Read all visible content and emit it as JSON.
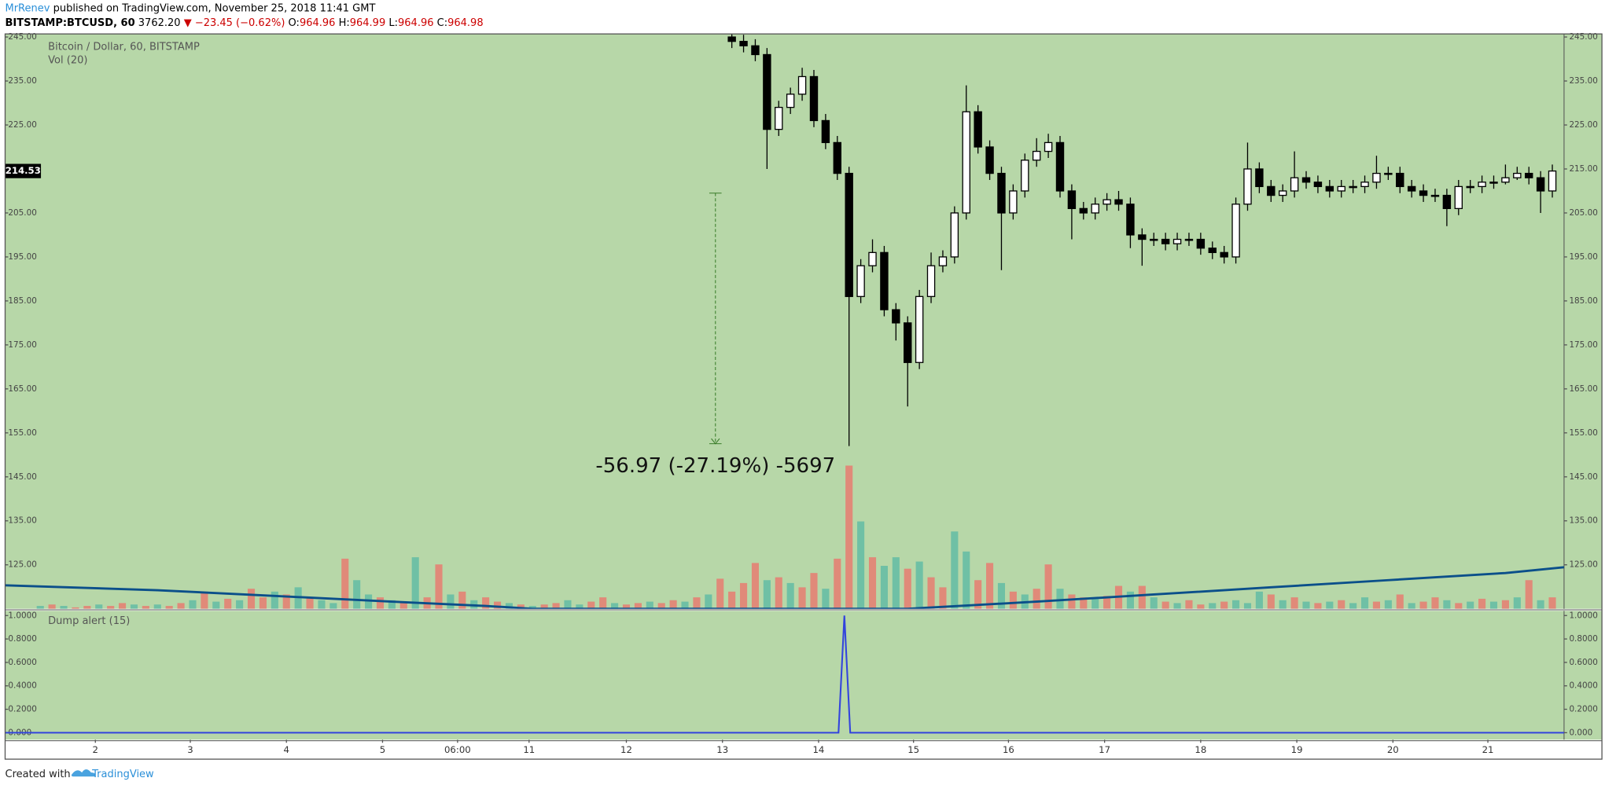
{
  "header": {
    "author": "MrRenev",
    "published": "published on TradingView.com, November 25, 2018 11:41 GMT",
    "symbol": "BITSTAMP:BTCUSD, 60",
    "last": "3762.20",
    "change": "▼ −23.45 (−0.62%)",
    "o_label": "O:",
    "o": "964.96",
    "h_label": "H:",
    "h": "964.99",
    "l_label": "L:",
    "l": "964.96",
    "c_label": "C:",
    "c": "964.98"
  },
  "footer": {
    "created": "Created with",
    "brand": "TradingView"
  },
  "chart_data": [
    {
      "type": "candlestick",
      "title": "Bitcoin / Dollar, 60, BITSTAMP",
      "background": "#b7d7a8",
      "up_color": "#ffffff",
      "down_color": "#000000",
      "xlim": [
        -3,
        130
      ],
      "xticks": [
        {
          "value": 4.7,
          "label": "2"
        },
        {
          "value": 12.8,
          "label": "3"
        },
        {
          "value": 21,
          "label": "4"
        },
        {
          "value": 29.2,
          "label": "5"
        },
        {
          "value": 35.6,
          "label": "06:00"
        },
        {
          "value": 41.7,
          "label": "11"
        },
        {
          "value": 50,
          "label": "12"
        },
        {
          "value": 58.2,
          "label": "13"
        },
        {
          "value": 66.4,
          "label": "14"
        },
        {
          "value": 74.5,
          "label": "15"
        },
        {
          "value": 82.6,
          "label": "16"
        },
        {
          "value": 90.8,
          "label": "17"
        },
        {
          "value": 99,
          "label": "18"
        },
        {
          "value": 107.2,
          "label": "19"
        },
        {
          "value": 115.4,
          "label": "20"
        },
        {
          "value": 123.5,
          "label": "21"
        }
      ],
      "ylim": [
        115,
        245.7
      ],
      "yticks": [
        {
          "value": 125,
          "label": "125.00"
        },
        {
          "value": 135,
          "label": "135.00"
        },
        {
          "value": 145,
          "label": "145.00"
        },
        {
          "value": 155,
          "label": "155.00"
        },
        {
          "value": 165,
          "label": "165.00"
        },
        {
          "value": 175,
          "label": "175.00"
        },
        {
          "value": 185,
          "label": "185.00"
        },
        {
          "value": 195,
          "label": "195.00"
        },
        {
          "value": 205,
          "label": "205.00"
        },
        {
          "value": 215,
          "label": "215.00"
        },
        {
          "value": 225,
          "label": "225.00"
        },
        {
          "value": 235,
          "label": "235.00"
        },
        {
          "value": 245,
          "label": "245.00"
        }
      ],
      "last_price": {
        "value": 214.53,
        "label": "214.53"
      },
      "x": [
        59,
        60,
        61,
        62,
        63,
        64,
        65,
        66,
        67,
        68,
        69,
        70,
        71,
        72,
        73,
        74,
        75,
        76,
        77,
        78,
        79,
        80,
        81,
        82,
        83,
        84,
        85,
        86,
        87,
        88,
        89,
        90,
        91,
        92,
        93,
        94,
        95,
        96,
        97,
        98,
        99,
        100,
        101,
        102,
        103,
        104,
        105,
        106,
        107,
        108,
        109,
        110,
        111,
        112,
        113,
        114,
        115,
        116,
        117,
        118,
        119,
        120,
        121,
        122,
        123,
        124,
        125,
        126,
        127,
        128,
        129
      ],
      "open": [
        245,
        244,
        243,
        241,
        224,
        229,
        232,
        236,
        226,
        221,
        214,
        186,
        193,
        196,
        183,
        180,
        171,
        186,
        193,
        195,
        205,
        228,
        220,
        214,
        205,
        210,
        217,
        219,
        221,
        210,
        206,
        205,
        207,
        208,
        207,
        200,
        199,
        199,
        198,
        199,
        199,
        197,
        196,
        195,
        207,
        215,
        211,
        209,
        210,
        213,
        212,
        211,
        210,
        211,
        211,
        212,
        214,
        214,
        211,
        210,
        209,
        209,
        206,
        211,
        211,
        212,
        212,
        213,
        214,
        213,
        210
      ],
      "high": [
        246.5,
        245.5,
        244.5,
        242.5,
        230.5,
        233.5,
        238,
        237.5,
        227.5,
        222.5,
        215.5,
        194.5,
        199,
        197.5,
        184.5,
        181.5,
        187.5,
        196,
        196.5,
        206.5,
        234,
        229.5,
        221.5,
        215.5,
        211.5,
        218.5,
        222,
        223,
        222.5,
        211.5,
        207.5,
        208.5,
        209.5,
        210,
        208.5,
        201.5,
        200.5,
        200.5,
        200.5,
        200.5,
        200.5,
        198.5,
        197.5,
        208.5,
        221,
        216.5,
        212.5,
        211.5,
        219,
        214.5,
        213.5,
        212.5,
        212.5,
        212.5,
        213.5,
        218,
        215.5,
        215.5,
        212.5,
        211.5,
        210.5,
        210.5,
        212.5,
        212.5,
        213.5,
        213.5,
        216,
        215.5,
        215.5,
        214.5,
        216
      ],
      "low": [
        242.5,
        241.5,
        239.5,
        215,
        222.5,
        227.5,
        230.5,
        224.5,
        219.5,
        212.5,
        152,
        184.5,
        191.5,
        181.5,
        176,
        161,
        169.5,
        184.5,
        191.5,
        193.5,
        203.5,
        218.5,
        212.5,
        192,
        203.5,
        208.5,
        215.5,
        217.5,
        208.5,
        199,
        203.5,
        203.5,
        205.5,
        205.5,
        197,
        193,
        197.5,
        196.5,
        196.5,
        197.5,
        195.5,
        194.5,
        193.5,
        193.5,
        205.5,
        209.5,
        207.5,
        207.5,
        208.5,
        210.5,
        209.5,
        208.5,
        208.5,
        209.5,
        209.5,
        210.5,
        212.5,
        209.5,
        208.5,
        207.5,
        207.5,
        202,
        204.5,
        209.5,
        209.5,
        210.5,
        211.5,
        212.5,
        211.5,
        205,
        208.5
      ],
      "close": [
        244,
        243,
        241,
        224,
        229,
        232,
        236,
        226,
        221,
        214,
        186,
        193,
        196,
        183,
        180,
        171,
        186,
        193,
        195,
        205,
        228,
        220,
        214,
        205,
        210,
        217,
        219,
        221,
        210,
        206,
        205,
        207,
        208,
        207,
        200,
        199,
        199,
        198,
        199,
        199,
        197,
        196,
        195,
        207,
        215,
        211,
        209,
        210,
        213,
        212,
        211,
        210,
        211,
        211,
        212,
        214,
        214,
        211,
        210,
        209,
        209,
        206,
        211,
        211,
        212,
        212,
        213,
        214,
        213,
        210,
        214.53
      ],
      "measure": {
        "x": 57.6,
        "from": 209.5,
        "to": 152.53,
        "color": "#3a7d2a",
        "label": "-56.97 (-27.19%) -5697"
      },
      "volume": {
        "title": "Vol (20)",
        "up_color": "#6fc0a5",
        "down_color": "#e08a79",
        "values": [
          2,
          3,
          2,
          1,
          2,
          3,
          2,
          4,
          3,
          2,
          3,
          2,
          4,
          6,
          12,
          5,
          7,
          6,
          14,
          8,
          12,
          10,
          15,
          8,
          6,
          4,
          35,
          20,
          10,
          8,
          6,
          5,
          36,
          8,
          31,
          10,
          12,
          6,
          8,
          5,
          4,
          3,
          2,
          3,
          4,
          6,
          3,
          5,
          8,
          4,
          3,
          4,
          5,
          4,
          6,
          5,
          8,
          10,
          21,
          12,
          18,
          32,
          20,
          22,
          18,
          15,
          25,
          14,
          35,
          100,
          61,
          36,
          30,
          36,
          28,
          33,
          22,
          15,
          54,
          40,
          20,
          32,
          18,
          12,
          10,
          14,
          31,
          14,
          10,
          8,
          7,
          9,
          16,
          12,
          16,
          8,
          5,
          4,
          6,
          3,
          4,
          5,
          6,
          4,
          12,
          10,
          6,
          8,
          5,
          4,
          5,
          6,
          4,
          8,
          5,
          6,
          10,
          4,
          5,
          8,
          6,
          4,
          5,
          7,
          5,
          6,
          8,
          20,
          6,
          8
        ],
        "up": [
          1,
          0,
          1,
          0,
          0,
          1,
          0,
          0,
          1,
          0,
          1,
          0,
          0,
          1,
          0,
          1,
          0,
          1,
          0,
          0,
          1,
          0,
          1,
          0,
          1,
          1,
          0,
          1,
          1,
          0,
          1,
          0,
          1,
          0,
          0,
          1,
          0,
          1,
          0,
          0,
          1,
          0,
          1,
          0,
          0,
          1,
          1,
          0,
          0,
          1,
          0,
          0,
          1,
          0,
          0,
          1,
          0,
          1,
          0,
          0,
          0,
          0,
          1,
          0,
          1,
          0,
          0,
          1,
          0,
          0,
          1,
          0,
          1,
          1,
          0,
          1,
          0,
          0,
          1,
          1,
          0,
          0,
          1,
          0,
          1,
          0,
          0,
          1,
          0,
          0,
          1,
          0,
          0,
          1,
          0,
          1,
          0,
          1,
          0,
          0,
          1,
          0,
          1,
          1,
          1,
          0,
          1,
          0,
          1,
          0,
          1,
          0,
          1,
          1,
          0,
          1,
          0,
          1,
          0,
          0,
          1,
          0,
          1,
          0,
          1,
          0,
          1,
          0,
          1,
          0
        ]
      },
      "volume_ma": {
        "color": "#0b4f8a",
        "x": [
          -3,
          10,
          20,
          30,
          38,
          42,
          74,
          85,
          95,
          105,
          115,
          125,
          130
        ],
        "values": [
          16.4,
          13,
          9,
          5,
          2,
          0,
          0,
          5,
          10,
          15,
          20,
          25,
          29
        ]
      }
    },
    {
      "type": "line",
      "title": "Dump alert (15)",
      "color": "#3344dd",
      "background": "#b7d7a8",
      "xlim": [
        -3,
        130
      ],
      "ylim": [
        -0.06,
        1.04
      ],
      "yticks": [
        {
          "value": 0,
          "label": "0.000"
        },
        {
          "value": 0.2,
          "label": "0.2000"
        },
        {
          "value": 0.4,
          "label": "0.4000"
        },
        {
          "value": 0.6,
          "label": "0.6000"
        },
        {
          "value": 0.8,
          "label": "0.8000"
        },
        {
          "value": 1,
          "label": "1.0000"
        }
      ],
      "x": [
        -3,
        68.1,
        68.6,
        69.1,
        130
      ],
      "values": [
        0,
        0,
        1,
        0,
        0
      ]
    }
  ]
}
